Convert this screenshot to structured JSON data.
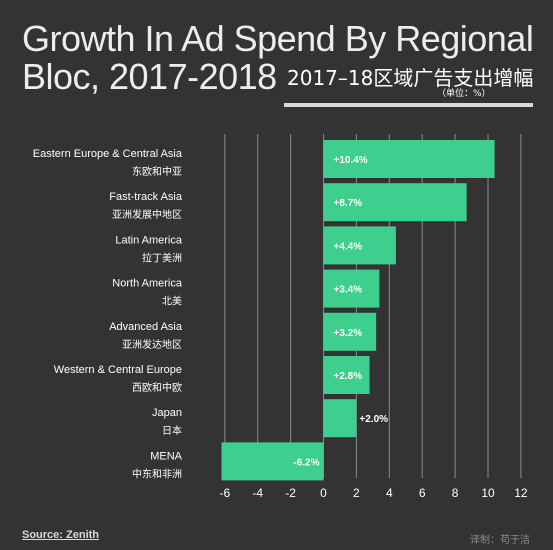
{
  "header": {
    "title_line1": "Growth In Ad Spend By Regional",
    "title_line2": "Bloc, 2017-2018",
    "title_cn": "2017–18区域广告支出增幅",
    "unit": "（单位：%）"
  },
  "footer": {
    "source": "Source: Zenith",
    "credit": "译制：苟于洁"
  },
  "colors": {
    "bar": "#3ecf8e",
    "background": "#333333",
    "grid": "#8c8c8c",
    "text": "#ffffff"
  },
  "chart_data": {
    "type": "bar",
    "orientation": "horizontal",
    "categories": [
      {
        "en": "Eastern Europe & Central Asia",
        "cn": "东欧和中亚"
      },
      {
        "en": "Fast-track Asia",
        "cn": "亚洲发展中地区"
      },
      {
        "en": "Latin America",
        "cn": "拉丁美洲"
      },
      {
        "en": "North America",
        "cn": "北美"
      },
      {
        "en": "Advanced Asia",
        "cn": "亚洲发达地区"
      },
      {
        "en": "Western & Central Europe",
        "cn": "西欧和中欧"
      },
      {
        "en": "Japan",
        "cn": "日本"
      },
      {
        "en": "MENA",
        "cn": "中东和非洲"
      }
    ],
    "values": [
      10.4,
      8.7,
      4.4,
      3.4,
      3.2,
      2.8,
      2.0,
      -6.2
    ],
    "data_labels": [
      "+10.4%",
      "+8.7%",
      "+4.4%",
      "+3.4%",
      "+3.2%",
      "+2.8%",
      "+2.0%",
      "-6.2%"
    ],
    "xlim": [
      -7,
      12
    ],
    "xticks": [
      -6,
      -4,
      -2,
      0,
      2,
      4,
      6,
      8,
      10,
      12
    ],
    "grid": true
  }
}
